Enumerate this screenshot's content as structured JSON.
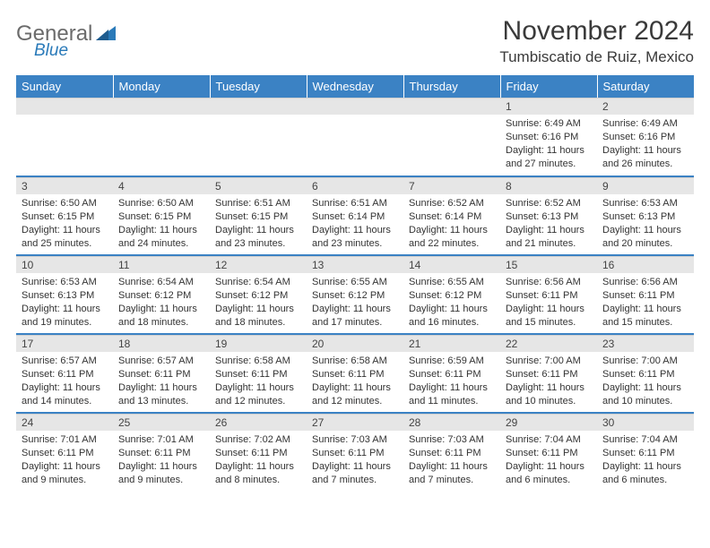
{
  "logo": {
    "text1": "General",
    "text2": "Blue"
  },
  "title": "November 2024",
  "location": "Tumbiscatio de Ruiz, Mexico",
  "colors": {
    "header_bg": "#3b82c4",
    "header_text": "#ffffff",
    "daynum_bg": "#e6e6e6",
    "border": "#3b82c4",
    "logo_gray": "#6b6b6b",
    "logo_blue": "#2a7ab9"
  },
  "dayNames": [
    "Sunday",
    "Monday",
    "Tuesday",
    "Wednesday",
    "Thursday",
    "Friday",
    "Saturday"
  ],
  "weeks": [
    [
      {
        "empty": true
      },
      {
        "empty": true
      },
      {
        "empty": true
      },
      {
        "empty": true
      },
      {
        "empty": true
      },
      {
        "n": "1",
        "sunrise": "Sunrise: 6:49 AM",
        "sunset": "Sunset: 6:16 PM",
        "daylight": "Daylight: 11 hours and 27 minutes."
      },
      {
        "n": "2",
        "sunrise": "Sunrise: 6:49 AM",
        "sunset": "Sunset: 6:16 PM",
        "daylight": "Daylight: 11 hours and 26 minutes."
      }
    ],
    [
      {
        "n": "3",
        "sunrise": "Sunrise: 6:50 AM",
        "sunset": "Sunset: 6:15 PM",
        "daylight": "Daylight: 11 hours and 25 minutes."
      },
      {
        "n": "4",
        "sunrise": "Sunrise: 6:50 AM",
        "sunset": "Sunset: 6:15 PM",
        "daylight": "Daylight: 11 hours and 24 minutes."
      },
      {
        "n": "5",
        "sunrise": "Sunrise: 6:51 AM",
        "sunset": "Sunset: 6:15 PM",
        "daylight": "Daylight: 11 hours and 23 minutes."
      },
      {
        "n": "6",
        "sunrise": "Sunrise: 6:51 AM",
        "sunset": "Sunset: 6:14 PM",
        "daylight": "Daylight: 11 hours and 23 minutes."
      },
      {
        "n": "7",
        "sunrise": "Sunrise: 6:52 AM",
        "sunset": "Sunset: 6:14 PM",
        "daylight": "Daylight: 11 hours and 22 minutes."
      },
      {
        "n": "8",
        "sunrise": "Sunrise: 6:52 AM",
        "sunset": "Sunset: 6:13 PM",
        "daylight": "Daylight: 11 hours and 21 minutes."
      },
      {
        "n": "9",
        "sunrise": "Sunrise: 6:53 AM",
        "sunset": "Sunset: 6:13 PM",
        "daylight": "Daylight: 11 hours and 20 minutes."
      }
    ],
    [
      {
        "n": "10",
        "sunrise": "Sunrise: 6:53 AM",
        "sunset": "Sunset: 6:13 PM",
        "daylight": "Daylight: 11 hours and 19 minutes."
      },
      {
        "n": "11",
        "sunrise": "Sunrise: 6:54 AM",
        "sunset": "Sunset: 6:12 PM",
        "daylight": "Daylight: 11 hours and 18 minutes."
      },
      {
        "n": "12",
        "sunrise": "Sunrise: 6:54 AM",
        "sunset": "Sunset: 6:12 PM",
        "daylight": "Daylight: 11 hours and 18 minutes."
      },
      {
        "n": "13",
        "sunrise": "Sunrise: 6:55 AM",
        "sunset": "Sunset: 6:12 PM",
        "daylight": "Daylight: 11 hours and 17 minutes."
      },
      {
        "n": "14",
        "sunrise": "Sunrise: 6:55 AM",
        "sunset": "Sunset: 6:12 PM",
        "daylight": "Daylight: 11 hours and 16 minutes."
      },
      {
        "n": "15",
        "sunrise": "Sunrise: 6:56 AM",
        "sunset": "Sunset: 6:11 PM",
        "daylight": "Daylight: 11 hours and 15 minutes."
      },
      {
        "n": "16",
        "sunrise": "Sunrise: 6:56 AM",
        "sunset": "Sunset: 6:11 PM",
        "daylight": "Daylight: 11 hours and 15 minutes."
      }
    ],
    [
      {
        "n": "17",
        "sunrise": "Sunrise: 6:57 AM",
        "sunset": "Sunset: 6:11 PM",
        "daylight": "Daylight: 11 hours and 14 minutes."
      },
      {
        "n": "18",
        "sunrise": "Sunrise: 6:57 AM",
        "sunset": "Sunset: 6:11 PM",
        "daylight": "Daylight: 11 hours and 13 minutes."
      },
      {
        "n": "19",
        "sunrise": "Sunrise: 6:58 AM",
        "sunset": "Sunset: 6:11 PM",
        "daylight": "Daylight: 11 hours and 12 minutes."
      },
      {
        "n": "20",
        "sunrise": "Sunrise: 6:58 AM",
        "sunset": "Sunset: 6:11 PM",
        "daylight": "Daylight: 11 hours and 12 minutes."
      },
      {
        "n": "21",
        "sunrise": "Sunrise: 6:59 AM",
        "sunset": "Sunset: 6:11 PM",
        "daylight": "Daylight: 11 hours and 11 minutes."
      },
      {
        "n": "22",
        "sunrise": "Sunrise: 7:00 AM",
        "sunset": "Sunset: 6:11 PM",
        "daylight": "Daylight: 11 hours and 10 minutes."
      },
      {
        "n": "23",
        "sunrise": "Sunrise: 7:00 AM",
        "sunset": "Sunset: 6:11 PM",
        "daylight": "Daylight: 11 hours and 10 minutes."
      }
    ],
    [
      {
        "n": "24",
        "sunrise": "Sunrise: 7:01 AM",
        "sunset": "Sunset: 6:11 PM",
        "daylight": "Daylight: 11 hours and 9 minutes."
      },
      {
        "n": "25",
        "sunrise": "Sunrise: 7:01 AM",
        "sunset": "Sunset: 6:11 PM",
        "daylight": "Daylight: 11 hours and 9 minutes."
      },
      {
        "n": "26",
        "sunrise": "Sunrise: 7:02 AM",
        "sunset": "Sunset: 6:11 PM",
        "daylight": "Daylight: 11 hours and 8 minutes."
      },
      {
        "n": "27",
        "sunrise": "Sunrise: 7:03 AM",
        "sunset": "Sunset: 6:11 PM",
        "daylight": "Daylight: 11 hours and 7 minutes."
      },
      {
        "n": "28",
        "sunrise": "Sunrise: 7:03 AM",
        "sunset": "Sunset: 6:11 PM",
        "daylight": "Daylight: 11 hours and 7 minutes."
      },
      {
        "n": "29",
        "sunrise": "Sunrise: 7:04 AM",
        "sunset": "Sunset: 6:11 PM",
        "daylight": "Daylight: 11 hours and 6 minutes."
      },
      {
        "n": "30",
        "sunrise": "Sunrise: 7:04 AM",
        "sunset": "Sunset: 6:11 PM",
        "daylight": "Daylight: 11 hours and 6 minutes."
      }
    ]
  ]
}
